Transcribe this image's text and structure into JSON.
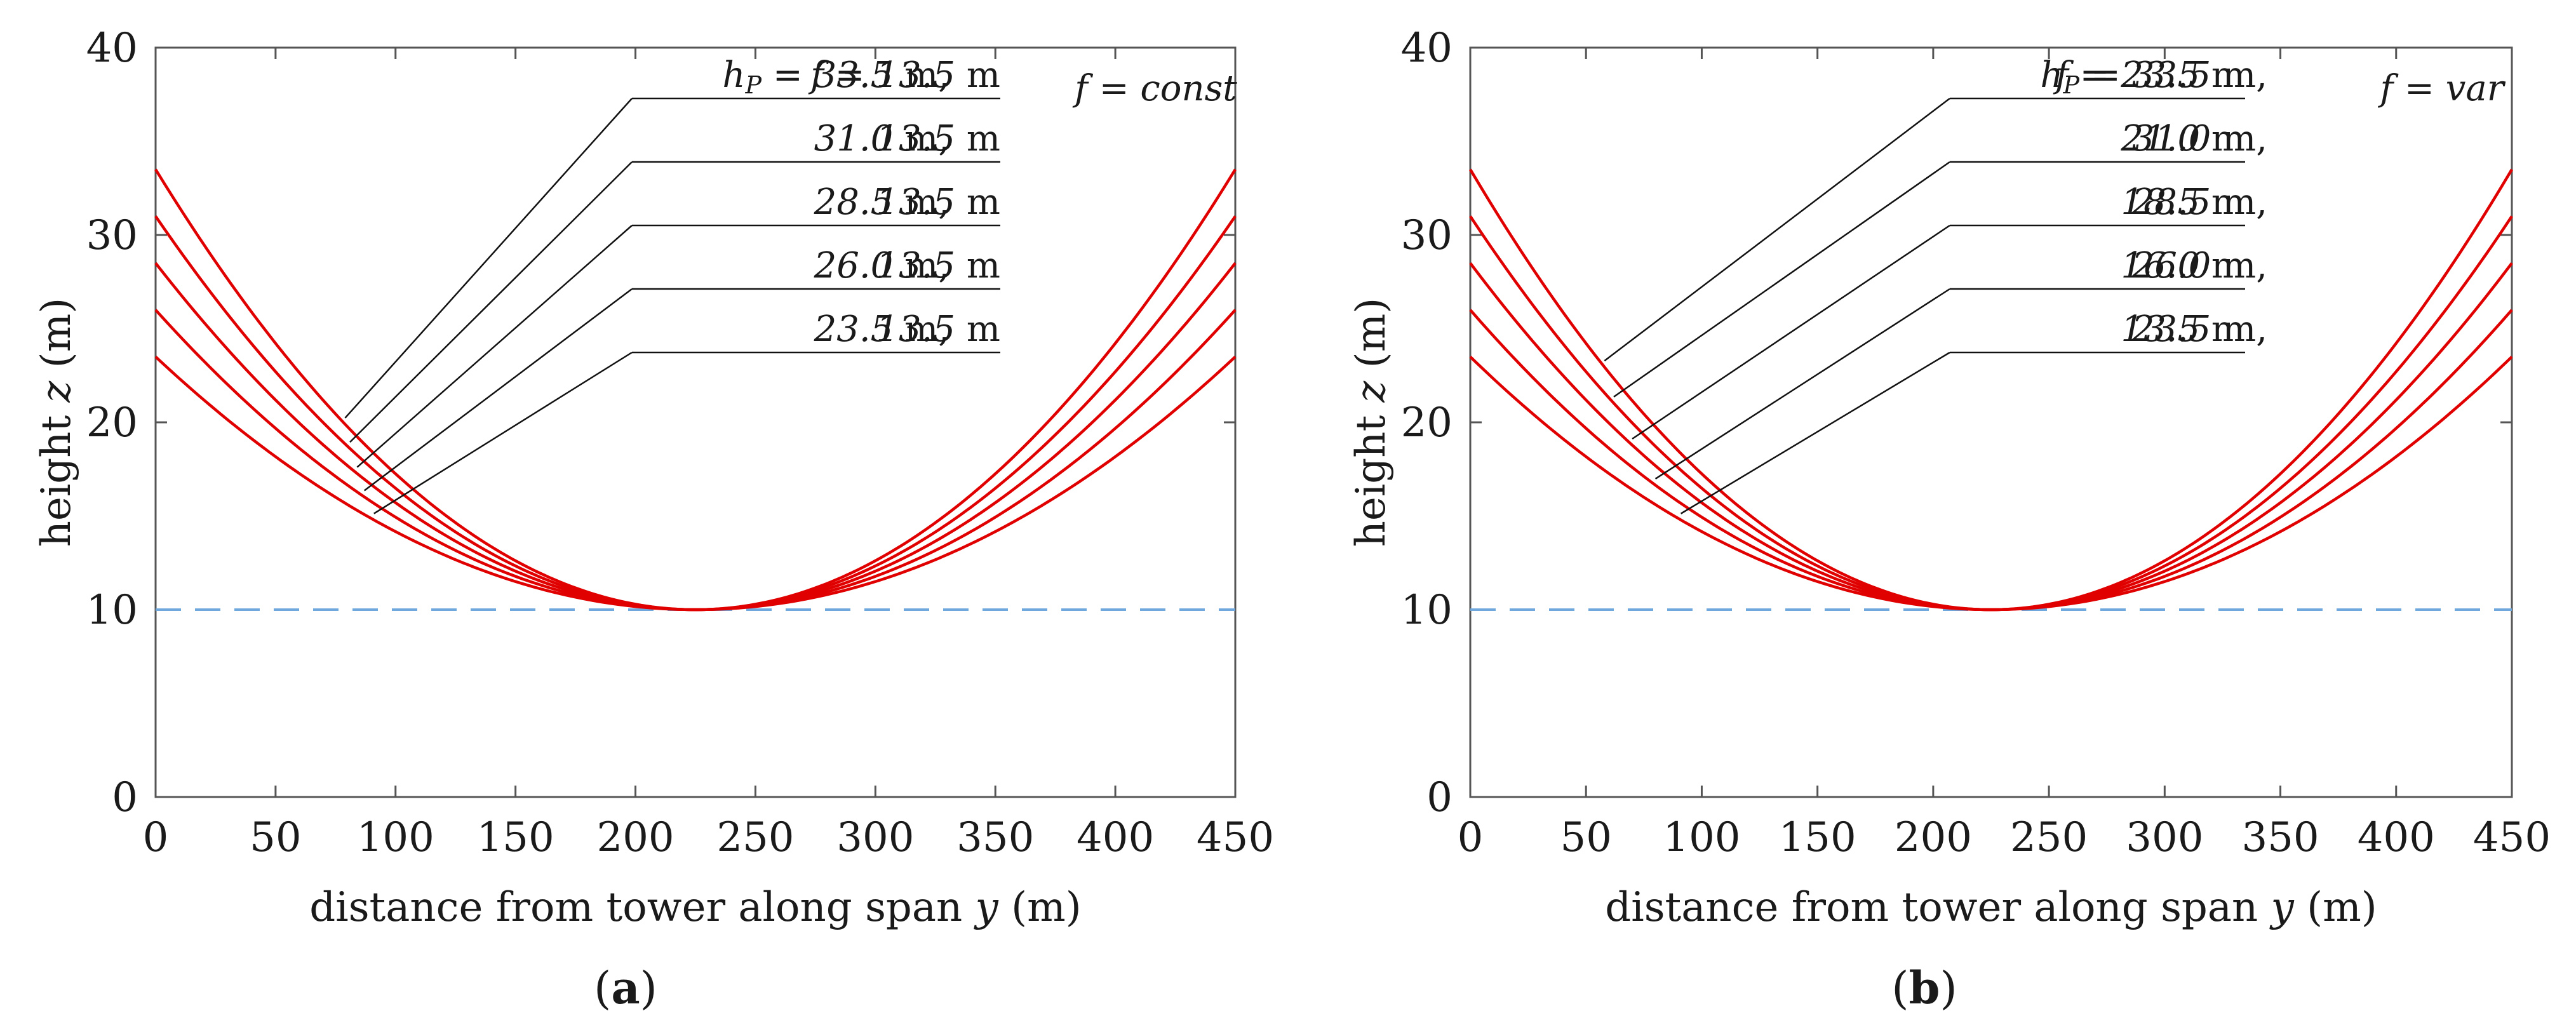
{
  "chart_data": [
    {
      "type": "line",
      "panel_label": "a",
      "tag": "f = const",
      "xlabel": "distance from tower along span y (m)",
      "ylabel": "height z (m)",
      "xlim": [
        0,
        450
      ],
      "ylim": [
        0,
        40
      ],
      "xticks": [
        0,
        50,
        100,
        150,
        200,
        250,
        300,
        350,
        400,
        450
      ],
      "yticks": [
        0,
        10,
        20,
        30,
        40
      ],
      "reference_line": {
        "y": 10,
        "style": "dashed"
      },
      "span": 450,
      "min_clearance": 10,
      "series": [
        {
          "name": "hP = 33.5 m, f = 13.5 m",
          "hP": 33.5,
          "f": 13.5,
          "label_hP": "33.5",
          "label_f": "13.5",
          "label_x": 79
        },
        {
          "name": "31.0 m, 13.5 m",
          "hP": 31.0,
          "f": 13.5,
          "label_hP": "31.0",
          "label_f": "13.5",
          "label_x": 81
        },
        {
          "name": "28.5 m, 13.5 m",
          "hP": 28.5,
          "f": 13.5,
          "label_hP": "28.5",
          "label_f": "13.5",
          "label_x": 84
        },
        {
          "name": "26.0 m, 13.5 m",
          "hP": 26.0,
          "f": 13.5,
          "label_hP": "26.0",
          "label_f": "13.5",
          "label_x": 87
        },
        {
          "name": "23.5 m, 13.5 m",
          "hP": 23.5,
          "f": 13.5,
          "label_hP": "23.5",
          "label_f": "13.5",
          "label_x": 91
        }
      ]
    },
    {
      "type": "line",
      "panel_label": "b",
      "tag": "f = var",
      "xlabel": "distance from tower along span y (m)",
      "ylabel": "height z (m)",
      "xlim": [
        0,
        450
      ],
      "ylim": [
        0,
        40
      ],
      "xticks": [
        0,
        50,
        100,
        150,
        200,
        250,
        300,
        350,
        400,
        450
      ],
      "yticks": [
        0,
        10,
        20,
        30,
        40
      ],
      "reference_line": {
        "y": 10,
        "style": "dashed"
      },
      "span": 450,
      "min_clearance": 10,
      "series": [
        {
          "name": "hP = 33.5 m, f = 23.5 m",
          "hP": 33.5,
          "f": 23.5,
          "label_hP": "33.5",
          "label_f": "23.5",
          "label_x": 58
        },
        {
          "name": "31.0 m, 21.0 m",
          "hP": 31.0,
          "f": 21.0,
          "label_hP": "31.0",
          "label_f": "21.0",
          "label_x": 62
        },
        {
          "name": "28.5 m, 18.5 m",
          "hP": 28.5,
          "f": 18.5,
          "label_hP": "28.5",
          "label_f": "18.5",
          "label_x": 70
        },
        {
          "name": "26.0 m, 16.0 m",
          "hP": 26.0,
          "f": 16.0,
          "label_hP": "26.0",
          "label_f": "16.0",
          "label_x": 80
        },
        {
          "name": "23.5 m, 13.5 m",
          "hP": 23.5,
          "f": 13.5,
          "label_hP": "23.5",
          "label_f": "13.5",
          "label_x": 91
        }
      ]
    }
  ],
  "text": {
    "unit": "m",
    "hp_symbol": "h",
    "hp_subscript": "P",
    "f_symbol": "f",
    "equals": " = ",
    "separator": ","
  }
}
